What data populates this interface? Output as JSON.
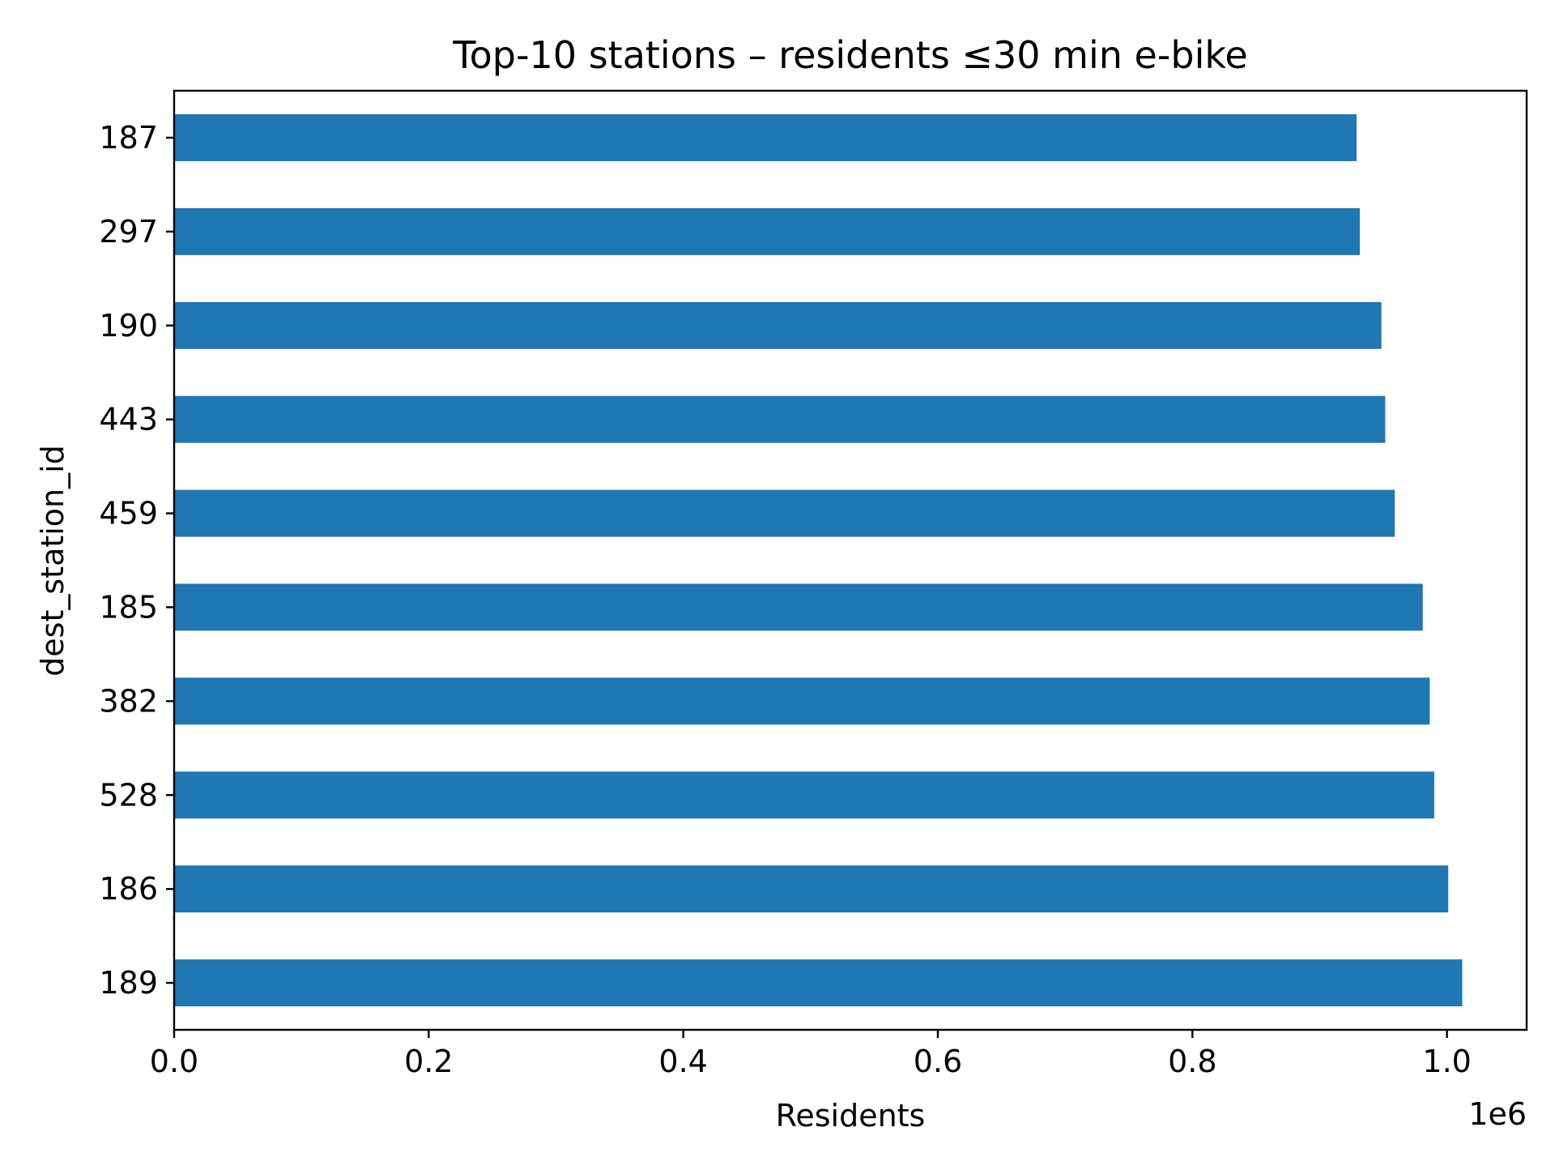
{
  "chart_data": {
    "type": "bar",
    "orientation": "horizontal",
    "title": "Top-10 stations – residents ≤30 min e-bike",
    "xlabel": "Residents",
    "ylabel": "dest_station_id",
    "x_offset_text": "1e6",
    "categories": [
      "187",
      "297",
      "190",
      "443",
      "459",
      "185",
      "382",
      "528",
      "186",
      "189"
    ],
    "values": [
      929000,
      931500,
      948500,
      951500,
      959000,
      981000,
      986500,
      990000,
      1001000,
      1012000
    ],
    "xlim": [
      0,
      1062600
    ],
    "xticks": [
      0,
      200000,
      400000,
      600000,
      800000,
      1000000
    ],
    "xtick_labels": [
      "0.0",
      "0.2",
      "0.4",
      "0.6",
      "0.8",
      "1.0"
    ],
    "bar_color": "#1f77b4",
    "grid": false,
    "legend": "none"
  }
}
